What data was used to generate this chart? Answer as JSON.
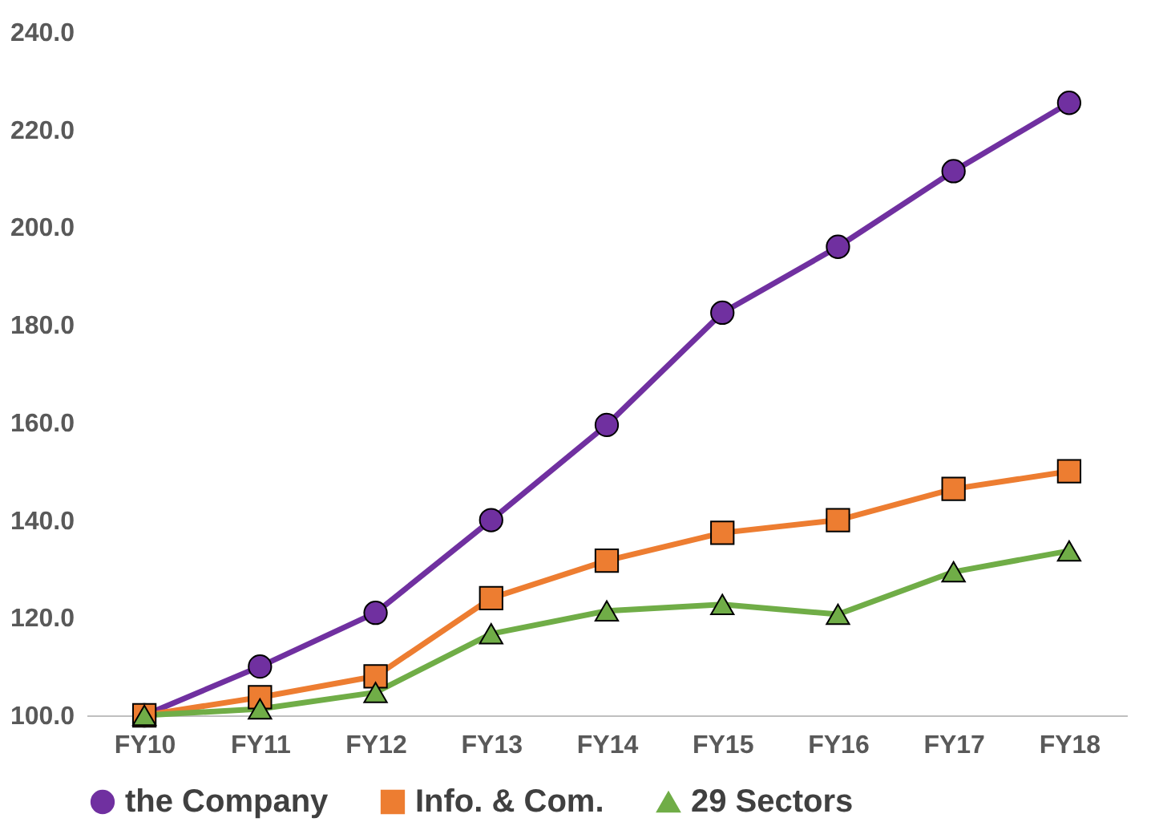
{
  "chart_data": {
    "type": "line",
    "categories": [
      "FY10",
      "FY11",
      "FY12",
      "FY13",
      "FY14",
      "FY15",
      "FY16",
      "FY17",
      "FY18"
    ],
    "series": [
      {
        "name": "the Company",
        "color": "#7030a0",
        "marker": "circle",
        "values": [
          100,
          110,
          121,
          140,
          159.5,
          182.5,
          196,
          211.5,
          225.5
        ]
      },
      {
        "name": "Info. & Com.",
        "color": "#ed7d31",
        "marker": "square",
        "values": [
          100,
          103.7,
          108,
          124,
          131.7,
          137.4,
          140,
          146.4,
          150
        ]
      },
      {
        "name": "29 Sectors",
        "color": "#70ad47",
        "marker": "triangle",
        "values": [
          100,
          101.3,
          104.7,
          116.7,
          121.4,
          122.7,
          120.7,
          129.4,
          133.7
        ]
      }
    ],
    "ylim": [
      100,
      240
    ],
    "yticks": [
      {
        "value": 100,
        "label": "100.0"
      },
      {
        "value": 120,
        "label": "120.0"
      },
      {
        "value": 140,
        "label": "140.0"
      },
      {
        "value": 160,
        "label": "160.0"
      },
      {
        "value": 180,
        "label": "180.0"
      },
      {
        "value": 200,
        "label": "200.0"
      },
      {
        "value": 220,
        "label": "220.0"
      },
      {
        "value": 240,
        "label": "240.0"
      }
    ],
    "grid": false,
    "legend": "bottom",
    "line_style": "solid"
  }
}
